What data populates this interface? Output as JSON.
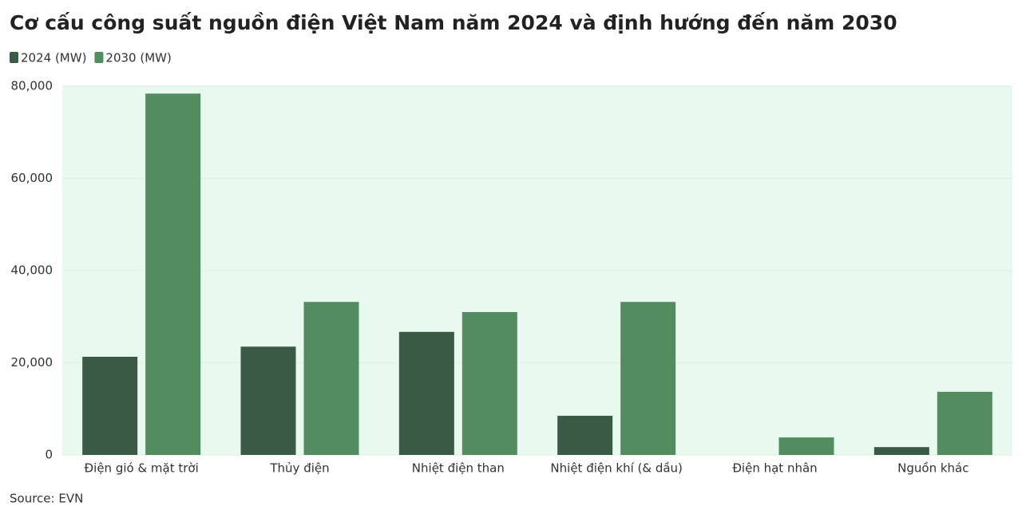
{
  "chart_data": {
    "type": "bar",
    "title": "Cơ cấu công suất nguồn điện Việt Nam năm 2024 và định hướng đến năm 2030",
    "categories": [
      "Điện gió & mặt trời",
      "Thủy điện",
      "Nhiệt điện than",
      "Nhiệt điện khí (& dầu)",
      "Điện hạt nhân",
      "Nguồn khác"
    ],
    "series": [
      {
        "name": "2024 (MW)",
        "color": "#3a5a45",
        "values": [
          21300,
          23500,
          26700,
          8500,
          0,
          1700
        ]
      },
      {
        "name": "2030 (MW)",
        "color": "#528c5f",
        "values": [
          78400,
          33200,
          31000,
          33200,
          3800,
          13700
        ]
      }
    ],
    "ylim": [
      0,
      80000
    ],
    "yticks": [
      0,
      {
        "value": 20000,
        "label": "20,000"
      },
      {
        "value": 40000,
        "label": "40,000"
      },
      {
        "value": 60000,
        "label": "60,000"
      },
      {
        "value": 80000,
        "label": "80,000"
      }
    ],
    "grid": true,
    "legend": "top-left",
    "source": "Source: EVN"
  }
}
